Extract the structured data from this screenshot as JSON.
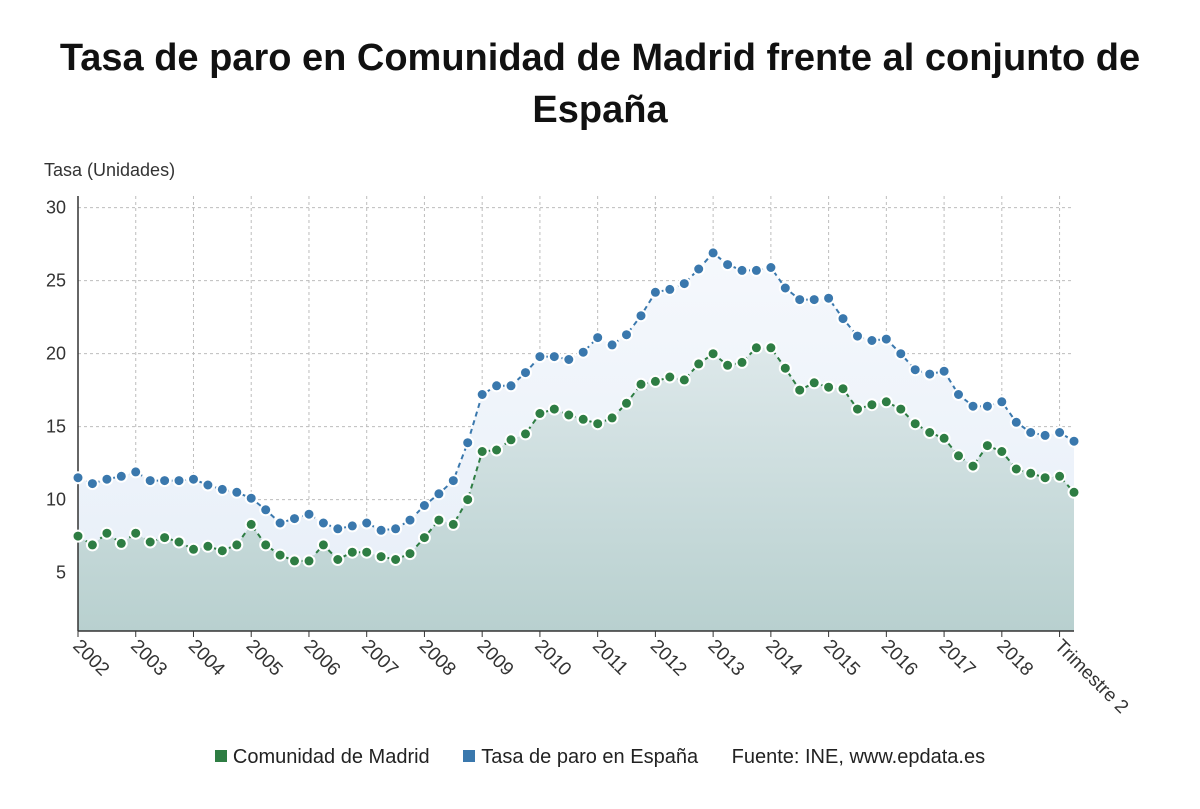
{
  "title_line1": "Tasa de paro en Comunidad de Madrid frente al conjunto de",
  "title_line2": "España",
  "legend": {
    "madrid_label": "Comunidad de Madrid",
    "spain_label": "Tasa de paro en España",
    "source": "Fuente: INE, www.epdata.es"
  },
  "colors": {
    "madrid": "#2e7d43",
    "spain": "#3a78ad",
    "madrid_fill": "#b8d0cf",
    "spain_fill": "#e6eef8",
    "grid": "#bdbdbd",
    "axis": "#333333"
  },
  "chart_data": {
    "type": "area",
    "ylabel": "Tasa (Unidades)",
    "xlabel": "",
    "ylim": [
      1,
      30
    ],
    "yticks": [
      5,
      10,
      15,
      20,
      25,
      30
    ],
    "xticks": [
      "2002",
      "2003",
      "2004",
      "2005",
      "2006",
      "2007",
      "2008",
      "2009",
      "2010",
      "2011",
      "2012",
      "2013",
      "2014",
      "2015",
      "2016",
      "2017",
      "2018",
      "Trimestre 2"
    ],
    "grid": true,
    "legend_position": "bottom",
    "x_period": "quarterly, 2002 T1 – 2019 T2",
    "series": [
      {
        "name": "Comunidad de Madrid",
        "values": [
          7.5,
          6.9,
          7.7,
          7.0,
          7.7,
          7.1,
          7.4,
          7.1,
          6.6,
          6.8,
          6.5,
          6.9,
          8.3,
          6.9,
          6.2,
          5.8,
          5.8,
          6.9,
          5.9,
          6.4,
          6.4,
          6.1,
          5.9,
          6.3,
          7.4,
          8.6,
          8.3,
          10.0,
          13.3,
          13.4,
          14.1,
          14.5,
          15.9,
          16.2,
          15.8,
          15.5,
          15.2,
          15.6,
          16.6,
          17.9,
          18.1,
          18.4,
          18.2,
          19.3,
          20.0,
          19.2,
          19.4,
          20.4,
          20.4,
          19.0,
          17.5,
          18.0,
          17.7,
          17.6,
          16.2,
          16.5,
          16.7,
          16.2,
          15.2,
          14.6,
          14.2,
          13.0,
          12.3,
          13.7,
          13.3,
          12.1,
          11.8,
          11.5,
          11.6,
          10.5
        ]
      },
      {
        "name": "Tasa de paro en España",
        "values": [
          11.5,
          11.1,
          11.4,
          11.6,
          11.9,
          11.3,
          11.3,
          11.3,
          11.4,
          11.0,
          10.7,
          10.5,
          10.1,
          9.3,
          8.4,
          8.7,
          9.0,
          8.4,
          8.0,
          8.2,
          8.4,
          7.9,
          8.0,
          8.6,
          9.6,
          10.4,
          11.3,
          13.9,
          17.2,
          17.8,
          17.8,
          18.7,
          19.8,
          19.8,
          19.6,
          20.1,
          21.1,
          20.6,
          21.3,
          22.6,
          24.2,
          24.4,
          24.8,
          25.8,
          26.9,
          26.1,
          25.7,
          25.7,
          25.9,
          24.5,
          23.7,
          23.7,
          23.8,
          22.4,
          21.2,
          20.9,
          21.0,
          20.0,
          18.9,
          18.6,
          18.8,
          17.2,
          16.4,
          16.4,
          16.7,
          15.3,
          14.6,
          14.4,
          14.6,
          14.0
        ]
      }
    ]
  }
}
